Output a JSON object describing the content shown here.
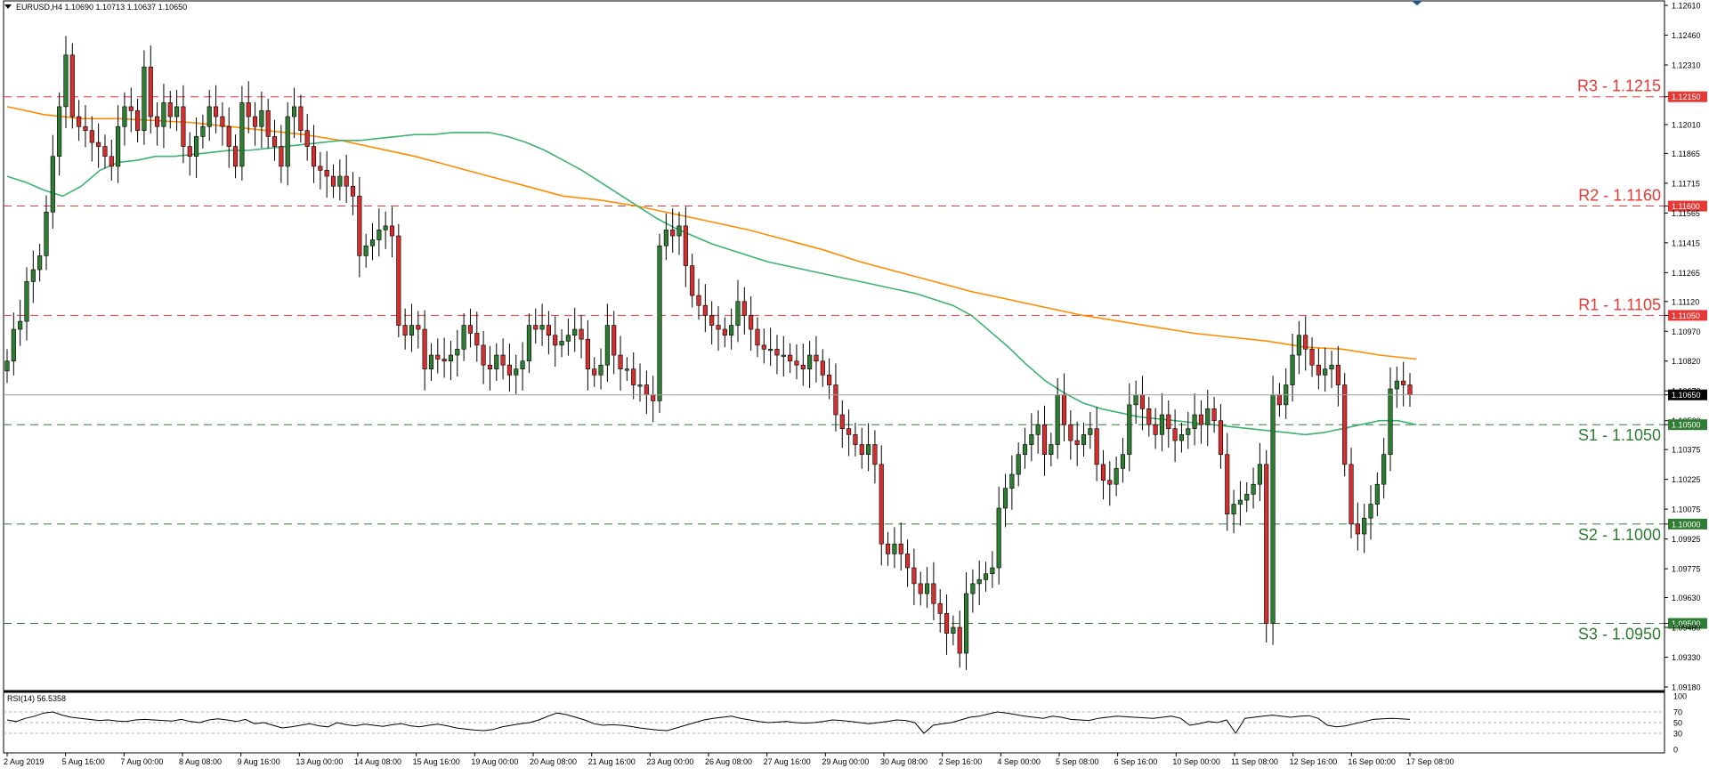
{
  "header": {
    "symbol_info": "EURUSD,H4  1.10690 1.10713 1.10637 1.10650",
    "rsi_label": "RSI(14) 56.5358"
  },
  "colors": {
    "bull": "#2e7d32",
    "bear": "#d32f2f",
    "ma_fast": "#3cb371",
    "ma_slow": "#ff8c00",
    "resistance": "#e53935",
    "support": "#2e7d32",
    "price_line": "#9e9e9e",
    "rsi_line": "#000000"
  },
  "chart_data": {
    "type": "candlestick",
    "symbol": "EURUSD",
    "timeframe": "H4",
    "last_price": 1.1065,
    "ylim": [
      1.0918,
      1.1261
    ],
    "y_ticks": [
      "1.12610",
      "1.12460",
      "1.12310",
      "1.12150",
      "1.12010",
      "1.11865",
      "1.11715",
      "1.11600",
      "1.11565",
      "1.11415",
      "1.11265",
      "1.11120",
      "1.11050",
      "1.10970",
      "1.10820",
      "1.10670",
      "1.10650",
      "1.10520",
      "1.10500",
      "1.10375",
      "1.10225",
      "1.10075",
      "1.10000",
      "1.09925",
      "1.09775",
      "1.09630",
      "1.09500",
      "1.09480",
      "1.09330",
      "1.09180"
    ],
    "x_ticks": [
      "2 Aug 2019",
      "5 Aug 16:00",
      "7 Aug 00:00",
      "8 Aug 08:00",
      "9 Aug 16:00",
      "13 Aug 00:00",
      "14 Aug 08:00",
      "15 Aug 16:00",
      "19 Aug 00:00",
      "20 Aug 08:00",
      "21 Aug 16:00",
      "23 Aug 00:00",
      "26 Aug 08:00",
      "27 Aug 16:00",
      "29 Aug 00:00",
      "30 Aug 08:00",
      "2 Sep 16:00",
      "4 Sep 00:00",
      "5 Sep 08:00",
      "6 Sep 16:00",
      "10 Sep 00:00",
      "11 Sep 08:00",
      "12 Sep 16:00",
      "16 Sep 00:00",
      "17 Sep 08:00"
    ],
    "levels": [
      {
        "label": "R3 - 1.1215",
        "value": 1.1215,
        "tag": "1.12150",
        "kind": "resistance"
      },
      {
        "label": "R2 - 1.1160",
        "value": 1.116,
        "tag": "1.11600",
        "kind": "resistance"
      },
      {
        "label": "R1 - 1.1105",
        "value": 1.1105,
        "tag": "1.11050",
        "kind": "resistance"
      },
      {
        "label": "S1 - 1.1050",
        "value": 1.105,
        "tag": "1.10500",
        "kind": "support"
      },
      {
        "label": "S2 - 1.1000",
        "value": 1.1,
        "tag": "1.10000",
        "kind": "support"
      },
      {
        "label": "S3 - 1.0950",
        "value": 1.095,
        "tag": "1.09500",
        "kind": "support"
      }
    ],
    "close": [
      1.1082,
      1.1098,
      1.1102,
      1.1122,
      1.1128,
      1.1135,
      1.1157,
      1.1185,
      1.121,
      1.1236,
      1.1205,
      1.12,
      1.1198,
      1.1192,
      1.119,
      1.1185,
      1.118,
      1.12,
      1.121,
      1.1208,
      1.1198,
      1.123,
      1.1205,
      1.12,
      1.1212,
      1.1205,
      1.121,
      1.119,
      1.1185,
      1.1195,
      1.12,
      1.121,
      1.1205,
      1.12,
      1.119,
      1.118,
      1.1212,
      1.1205,
      1.12,
      1.1208,
      1.1195,
      1.119,
      1.118,
      1.1205,
      1.121,
      1.1198,
      1.119,
      1.118,
      1.1178,
      1.1175,
      1.117,
      1.1175,
      1.117,
      1.1165,
      1.1135,
      1.114,
      1.1143,
      1.1148,
      1.115,
      1.1145,
      1.11,
      1.1095,
      1.11,
      1.1098,
      1.1078,
      1.1085,
      1.1083,
      1.1082,
      1.1085,
      1.1088,
      1.11,
      1.1096,
      1.109,
      1.108,
      1.1078,
      1.1085,
      1.108,
      1.1075,
      1.1078,
      1.1082,
      1.11,
      1.1098,
      1.11,
      1.1095,
      1.109,
      1.1092,
      1.1095,
      1.1098,
      1.1093,
      1.1078,
      1.1075,
      1.108,
      1.11,
      1.1085,
      1.1078,
      1.1078,
      1.107,
      1.107,
      1.1065,
      1.1062,
      1.114,
      1.1148,
      1.1145,
      1.115,
      1.113,
      1.1115,
      1.111,
      1.1105,
      1.11,
      1.1098,
      1.1095,
      1.11,
      1.1112,
      1.1105,
      1.1098,
      1.109,
      1.1088,
      1.1088,
      1.1085,
      1.1085,
      1.1082,
      1.108,
      1.1078,
      1.1085,
      1.1082,
      1.1075,
      1.107,
      1.1055,
      1.1048,
      1.1045,
      1.104,
      1.1035,
      1.104,
      1.103,
      1.099,
      1.0985,
      1.099,
      1.0985,
      1.0978,
      1.097,
      1.0965,
      1.097,
      1.096,
      1.0955,
      1.0945,
      1.0948,
      1.0935,
      1.0965,
      1.097,
      1.0972,
      1.0975,
      1.0978,
      1.1008,
      1.1018,
      1.1025,
      1.1035,
      1.104,
      1.1045,
      1.105,
      1.1035,
      1.104,
      1.1065,
      1.105,
      1.1042,
      1.104,
      1.1045,
      1.1048,
      1.103,
      1.1022,
      1.102,
      1.1028,
      1.1035,
      1.106,
      1.1065,
      1.1058,
      1.105,
      1.1045,
      1.1055,
      1.1048,
      1.1042,
      1.1045,
      1.1048,
      1.1055,
      1.105,
      1.1058,
      1.1052,
      1.1035,
      1.1005,
      1.101,
      1.1012,
      1.1015,
      1.102,
      1.103,
      1.095,
      1.1065,
      1.106,
      1.107,
      1.1085,
      1.1095,
      1.1088,
      1.108,
      1.1075,
      1.1078,
      1.108,
      1.107,
      1.103,
      1.1,
      1.0995,
      1.1003,
      1.101,
      1.102,
      1.1035,
      1.1068,
      1.1072,
      1.107,
      1.1065
    ],
    "sma_fast": [
      1.1175,
      1.1172,
      1.1168,
      1.1165,
      1.117,
      1.1178,
      1.1182,
      1.1183,
      1.1185,
      1.1185,
      1.1186,
      1.1187,
      1.1188,
      1.1188,
      1.1189,
      1.119,
      1.1191,
      1.1192,
      1.1193,
      1.1193,
      1.1194,
      1.1195,
      1.1196,
      1.1196,
      1.1197,
      1.1197,
      1.1197,
      1.1195,
      1.1192,
      1.1188,
      1.1183,
      1.1178,
      1.1172,
      1.1166,
      1.116,
      1.1154,
      1.1149,
      1.1145,
      1.1141,
      1.1138,
      1.1135,
      1.1132,
      1.113,
      1.1128,
      1.1126,
      1.1124,
      1.1122,
      1.112,
      1.1118,
      1.1116,
      1.1113,
      1.111,
      1.1105,
      1.1097,
      1.1089,
      1.108,
      1.1072,
      1.1066,
      1.1061,
      1.1058,
      1.1056,
      1.1054,
      1.1053,
      1.1052,
      1.1051,
      1.105,
      1.1049,
      1.1048,
      1.1047,
      1.1046,
      1.1045,
      1.1046,
      1.1048,
      1.105,
      1.1052,
      1.1052,
      1.105
    ],
    "sma_fast_span": [
      0,
      216
    ],
    "sma_slow": [
      1.121,
      1.1206,
      1.1204,
      1.1204,
      1.1203,
      1.1202,
      1.12,
      1.1198,
      1.1196,
      1.1193,
      1.1189,
      1.1185,
      1.118,
      1.1175,
      1.117,
      1.1165,
      1.1163,
      1.116,
      1.1156,
      1.1152,
      1.1148,
      1.1143,
      1.1138,
      1.1132,
      1.1127,
      1.1122,
      1.1117,
      1.1113,
      1.1109,
      1.1105,
      1.1102,
      1.1099,
      1.1096,
      1.1094,
      1.1092,
      1.1089,
      1.1088,
      1.1085,
      1.1083
    ],
    "sma_slow_span": [
      0,
      216
    ],
    "rsi": {
      "range": [
        0,
        100
      ],
      "levels": [
        30,
        50,
        70
      ],
      "tick_labels": [
        "100",
        "70",
        "50",
        "30",
        "0"
      ],
      "values": [
        55,
        52,
        58,
        62,
        68,
        70,
        64,
        60,
        58,
        56,
        54,
        55,
        53,
        52,
        55,
        56,
        55,
        54,
        53,
        56,
        52,
        50,
        55,
        57,
        55,
        52,
        56,
        48,
        50,
        45,
        40,
        42,
        45,
        48,
        44,
        42,
        50,
        46,
        44,
        47,
        45,
        43,
        46,
        48,
        44,
        42,
        45,
        47,
        44,
        40,
        38,
        36,
        35,
        37,
        42,
        45,
        48,
        50,
        55,
        62,
        68,
        65,
        60,
        55,
        48,
        45,
        46,
        45,
        43,
        40,
        38,
        36,
        35,
        40,
        45,
        50,
        55,
        58,
        60,
        62,
        58,
        55,
        52,
        50,
        51,
        52,
        50,
        49,
        50,
        52,
        55,
        54,
        52,
        50,
        48,
        50,
        52,
        55,
        54,
        50,
        30,
        45,
        48,
        50,
        55,
        60,
        62,
        66,
        70,
        68,
        65,
        62,
        60,
        58,
        62,
        60,
        56,
        55,
        54,
        58,
        60,
        62,
        61,
        60,
        59,
        58,
        60,
        62,
        58,
        45,
        48,
        52,
        50,
        55,
        30,
        58,
        60,
        62,
        64,
        62,
        60,
        62,
        63,
        58,
        45,
        42,
        44,
        48,
        52,
        56,
        57,
        58,
        57,
        56
      ]
    }
  }
}
